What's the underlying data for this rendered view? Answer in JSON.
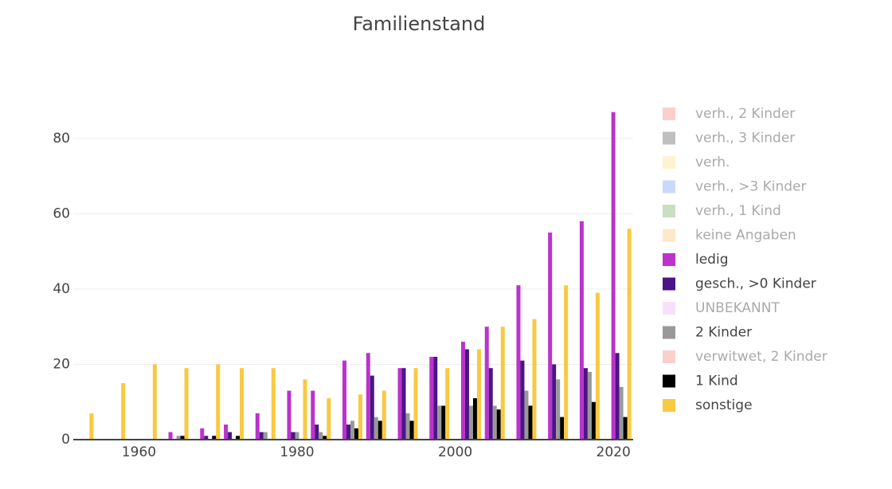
{
  "chart_data": {
    "type": "bar",
    "title": "Familienstand",
    "x": [
      1953,
      1957,
      1961,
      1965,
      1969,
      1972,
      1976,
      1980,
      1983,
      1987,
      1990,
      1994,
      1998,
      2002,
      2005,
      2009,
      2013,
      2017,
      2021
    ],
    "xlim": [
      1951.7,
      2022.5
    ],
    "xticks": [
      1960,
      1980,
      2000,
      2020
    ],
    "ylim": [
      0,
      91.6
    ],
    "yticks": [
      0,
      20,
      40,
      60,
      80
    ],
    "grid": true,
    "series": [
      {
        "name": "verh., 2 Kinder",
        "color": "#f8a29a",
        "visible": false
      },
      {
        "name": "verh., 3 Kinder",
        "color": "#808080",
        "visible": false
      },
      {
        "name": "verh.",
        "color": "#fde8a0",
        "visible": false
      },
      {
        "name": "verh., >3 Kinder",
        "color": "#93b4f7",
        "visible": false
      },
      {
        "name": "verh., 1 Kind",
        "color": "#97bc86",
        "visible": false
      },
      {
        "name": "keine Angaben",
        "color": "#f9d49a",
        "visible": false
      },
      {
        "name": "ledig",
        "color": "#bb33cc",
        "visible": true,
        "values": [
          0,
          0,
          0,
          2,
          3,
          4,
          7,
          13,
          13,
          21,
          23,
          19,
          22,
          26,
          30,
          41,
          55,
          58,
          87
        ]
      },
      {
        "name": "gesch., >0 Kinder",
        "color": "#4b1585",
        "visible": true,
        "values": [
          0,
          0,
          0,
          0,
          1,
          2,
          2,
          2,
          4,
          4,
          17,
          19,
          22,
          24,
          19,
          21,
          20,
          19,
          23
        ]
      },
      {
        "name": "UNBEKANNT",
        "color": "#eec3f7",
        "visible": false
      },
      {
        "name": "2 Kinder",
        "color": "#999999",
        "visible": true,
        "values": [
          0,
          0,
          0,
          1,
          0,
          0,
          2,
          2,
          2,
          5,
          6,
          7,
          9,
          9,
          9,
          13,
          16,
          18,
          14
        ]
      },
      {
        "name": "verwitwet, 2 Kinder",
        "color": "#f8a29a",
        "visible": false
      },
      {
        "name": "1 Kind",
        "color": "#000000",
        "visible": true,
        "values": [
          0,
          0,
          0,
          1,
          1,
          1,
          0,
          0,
          1,
          3,
          5,
          5,
          9,
          11,
          8,
          9,
          6,
          10,
          6
        ]
      },
      {
        "name": "sonstige",
        "color": "#f9c941",
        "visible": true,
        "values": [
          7,
          15,
          20,
          19,
          20,
          19,
          19,
          16,
          11,
          12,
          13,
          19,
          19,
          24,
          30,
          32,
          41,
          39,
          56
        ]
      }
    ]
  }
}
